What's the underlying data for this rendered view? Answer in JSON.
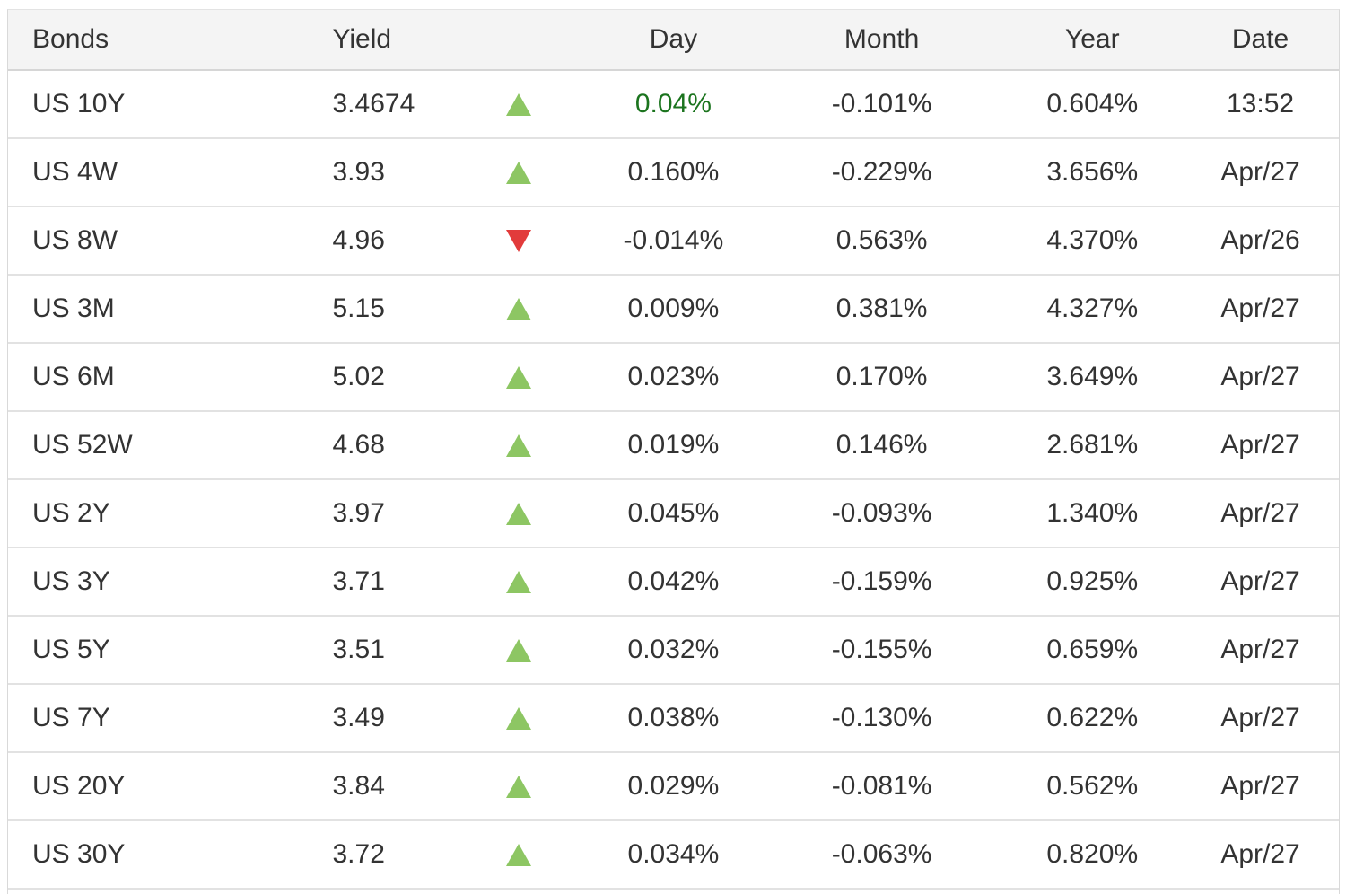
{
  "colors": {
    "up_triangle_green": "#8dc663",
    "down_triangle_red": "#e23b3b",
    "highlight_day_green": "#1b741e",
    "header_background": "#f4f4f4",
    "body_text": "#333333",
    "row_divider": "#e2e2e2",
    "header_divider": "#d6d6d6",
    "outer_border": "#d9d9d9"
  },
  "table": {
    "headers": {
      "bonds": "Bonds",
      "yield": "Yield",
      "arrow": "",
      "day": "Day",
      "month": "Month",
      "year": "Year",
      "date": "Date"
    },
    "rows": [
      {
        "bond": "US 10Y",
        "yield": "3.4674",
        "direction": "up",
        "day": "0.04%",
        "day_highlight": true,
        "month": "-0.101%",
        "year": "0.604%",
        "date": "13:52"
      },
      {
        "bond": "US 4W",
        "yield": "3.93",
        "direction": "up",
        "day": "0.160%",
        "day_highlight": false,
        "month": "-0.229%",
        "year": "3.656%",
        "date": "Apr/27"
      },
      {
        "bond": "US 8W",
        "yield": "4.96",
        "direction": "down",
        "day": "-0.014%",
        "day_highlight": false,
        "month": "0.563%",
        "year": "4.370%",
        "date": "Apr/26"
      },
      {
        "bond": "US 3M",
        "yield": "5.15",
        "direction": "up",
        "day": "0.009%",
        "day_highlight": false,
        "month": "0.381%",
        "year": "4.327%",
        "date": "Apr/27"
      },
      {
        "bond": "US 6M",
        "yield": "5.02",
        "direction": "up",
        "day": "0.023%",
        "day_highlight": false,
        "month": "0.170%",
        "year": "3.649%",
        "date": "Apr/27"
      },
      {
        "bond": "US 52W",
        "yield": "4.68",
        "direction": "up",
        "day": "0.019%",
        "day_highlight": false,
        "month": "0.146%",
        "year": "2.681%",
        "date": "Apr/27"
      },
      {
        "bond": "US 2Y",
        "yield": "3.97",
        "direction": "up",
        "day": "0.045%",
        "day_highlight": false,
        "month": "-0.093%",
        "year": "1.340%",
        "date": "Apr/27"
      },
      {
        "bond": "US 3Y",
        "yield": "3.71",
        "direction": "up",
        "day": "0.042%",
        "day_highlight": false,
        "month": "-0.159%",
        "year": "0.925%",
        "date": "Apr/27"
      },
      {
        "bond": "US 5Y",
        "yield": "3.51",
        "direction": "up",
        "day": "0.032%",
        "day_highlight": false,
        "month": "-0.155%",
        "year": "0.659%",
        "date": "Apr/27"
      },
      {
        "bond": "US 7Y",
        "yield": "3.49",
        "direction": "up",
        "day": "0.038%",
        "day_highlight": false,
        "month": "-0.130%",
        "year": "0.622%",
        "date": "Apr/27"
      },
      {
        "bond": "US 20Y",
        "yield": "3.84",
        "direction": "up",
        "day": "0.029%",
        "day_highlight": false,
        "month": "-0.081%",
        "year": "0.562%",
        "date": "Apr/27"
      },
      {
        "bond": "US 30Y",
        "yield": "3.72",
        "direction": "up",
        "day": "0.034%",
        "day_highlight": false,
        "month": "-0.063%",
        "year": "0.820%",
        "date": "Apr/27"
      }
    ]
  }
}
